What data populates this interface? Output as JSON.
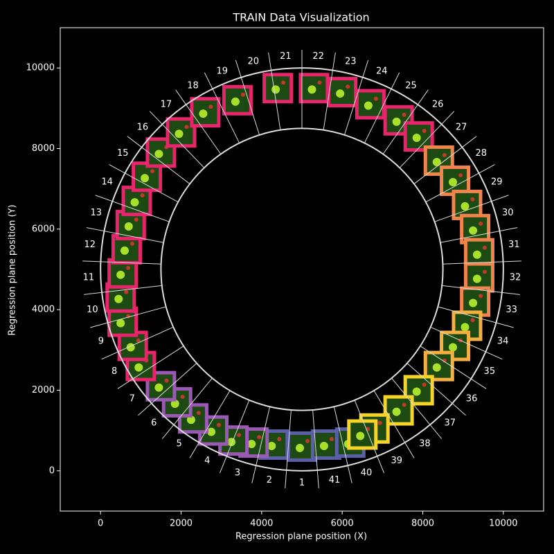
{
  "chart_data": {
    "type": "scatter",
    "title": "TRAIN Data Visualization",
    "x_label": "Regression plane position (X)",
    "y_label": "Regression plane position (Y)",
    "xlim": [
      -1000,
      11000
    ],
    "ylim": [
      -1000,
      11000
    ],
    "xticks": [
      0,
      2000,
      4000,
      6000,
      8000,
      10000
    ],
    "yticks": [
      0,
      2000,
      4000,
      6000,
      8000,
      10000
    ],
    "circles": {
      "center": [
        5000,
        5000
      ],
      "radii": [
        3500,
        5000
      ]
    },
    "sector_labels": [
      1,
      2,
      3,
      4,
      5,
      6,
      7,
      8,
      9,
      10,
      11,
      12,
      13,
      14,
      15,
      16,
      17,
      18,
      19,
      20,
      21,
      22,
      23,
      24,
      25,
      26,
      27,
      28,
      29,
      30,
      31,
      32,
      33,
      34,
      35,
      36,
      37,
      38,
      39,
      40,
      41
    ],
    "series": [
      {
        "color": "#5a5fa8",
        "x": [
          4300,
          5000,
          5600,
          6200
        ],
        "values": [
          650,
          600,
          650,
          700
        ]
      },
      {
        "color": "#9b59b6",
        "x": [
          3800,
          3300,
          2800,
          2300,
          1900,
          1500
        ],
        "values": [
          700,
          750,
          1000,
          1300,
          1700,
          2100
        ]
      },
      {
        "color": "#e8246c",
        "x": [
          1000,
          800,
          550,
          500,
          550,
          650,
          750,
          900,
          1150,
          1500,
          2000,
          2600,
          3400,
          4400,
          5300,
          6000,
          6700,
          7400,
          7900
        ],
        "values": [
          2600,
          3100,
          3700,
          4300,
          4900,
          5500,
          6100,
          6700,
          7300,
          7900,
          8400,
          8900,
          9200,
          9500,
          9500,
          9400,
          9100,
          8700,
          8300
        ]
      },
      {
        "color": "#f0844c",
        "x": [
          8400,
          8800,
          9100,
          9300,
          9400,
          9400,
          9300
        ],
        "values": [
          7700,
          7200,
          6600,
          6000,
          5400,
          4800,
          4200
        ]
      },
      {
        "color": "#f5b041",
        "x": [
          9100,
          8800,
          8400
        ],
        "values": [
          3600,
          3100,
          2600
        ]
      },
      {
        "color": "#f5d327",
        "x": [
          7900,
          7400,
          6800,
          6500
        ],
        "values": [
          2000,
          1500,
          1050,
          900
        ]
      }
    ]
  }
}
